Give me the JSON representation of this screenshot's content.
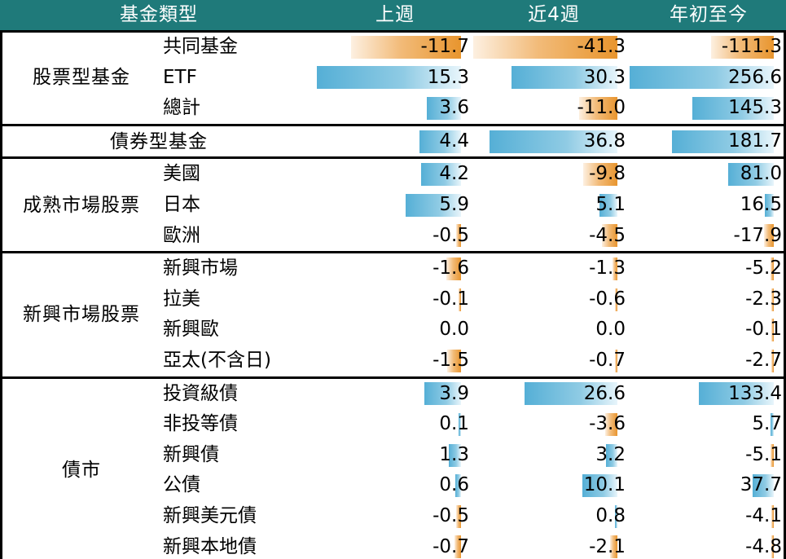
{
  "headers": {
    "category": "基金類型",
    "last_week": "上週",
    "last_4_weeks": "近4週",
    "ytd": "年初至今"
  },
  "colors": {
    "header_bg": "#1f7a7a",
    "header_text": "#ffffff",
    "positive_bar": "#55afd6",
    "negative_bar": "#e8952e"
  },
  "chart_data": {
    "type": "table",
    "columns": [
      "上週",
      "近4週",
      "年初至今"
    ],
    "groups": [
      {
        "name": "股票型基金",
        "rows": [
          {
            "label": "共同基金",
            "values": [
              -11.7,
              -41.3,
              -111.3
            ],
            "display": [
              "-11.7",
              "-41.3",
              "-111.3"
            ]
          },
          {
            "label": "ETF",
            "values": [
              15.3,
              30.3,
              256.6
            ],
            "display": [
              "15.3",
              "30.3",
              "256.6"
            ]
          },
          {
            "label": "總計",
            "values": [
              3.6,
              -11.0,
              145.3
            ],
            "display": [
              "3.6",
              "-11.0",
              "145.3"
            ]
          }
        ]
      },
      {
        "name": "債券型基金",
        "rows": [
          {
            "label": "",
            "values": [
              4.4,
              36.8,
              181.7
            ],
            "display": [
              "4.4",
              "36.8",
              "181.7"
            ]
          }
        ]
      },
      {
        "name": "成熟市場股票",
        "rows": [
          {
            "label": "美國",
            "values": [
              4.2,
              -9.8,
              81.0
            ],
            "display": [
              "4.2",
              "-9.8",
              "81.0"
            ]
          },
          {
            "label": "日本",
            "values": [
              5.9,
              5.1,
              16.5
            ],
            "display": [
              "5.9",
              "5.1",
              "16.5"
            ]
          },
          {
            "label": "歐洲",
            "values": [
              -0.5,
              -4.5,
              -17.9
            ],
            "display": [
              "-0.5",
              "-4.5",
              "-17.9"
            ]
          }
        ]
      },
      {
        "name": "新興市場股票",
        "rows": [
          {
            "label": "新興市場",
            "values": [
              -1.6,
              -1.3,
              -5.2
            ],
            "display": [
              "-1.6",
              "-1.3",
              "-5.2"
            ]
          },
          {
            "label": "拉美",
            "values": [
              -0.1,
              -0.6,
              -2.3
            ],
            "display": [
              "-0.1",
              "-0.6",
              "-2.3"
            ]
          },
          {
            "label": "新興歐",
            "values": [
              0.0,
              0.0,
              -0.1
            ],
            "display": [
              "0.0",
              "0.0",
              "-0.1"
            ]
          },
          {
            "label": "亞太(不含日)",
            "values": [
              -1.5,
              -0.7,
              -2.7
            ],
            "display": [
              "-1.5",
              "-0.7",
              "-2.7"
            ]
          }
        ]
      },
      {
        "name": "債市",
        "rows": [
          {
            "label": "投資級債",
            "values": [
              3.9,
              26.6,
              133.4
            ],
            "display": [
              "3.9",
              "26.6",
              "133.4"
            ]
          },
          {
            "label": "非投等債",
            "values": [
              0.1,
              -3.6,
              5.7
            ],
            "display": [
              "0.1",
              "-3.6",
              "5.7"
            ]
          },
          {
            "label": "新興債",
            "values": [
              1.3,
              3.2,
              -5.1
            ],
            "display": [
              "1.3",
              "3.2",
              "-5.1"
            ]
          },
          {
            "label": "公債",
            "values": [
              0.6,
              10.1,
              37.7
            ],
            "display": [
              "0.6",
              "10.1",
              "37.7"
            ]
          },
          {
            "label": "新興美元債",
            "values": [
              -0.5,
              0.8,
              -4.1
            ],
            "display": [
              "-0.5",
              "0.8",
              "-4.1"
            ]
          },
          {
            "label": "新興本地債",
            "values": [
              -0.7,
              -2.1,
              -4.8
            ],
            "display": [
              "-0.7",
              "-2.1",
              "-4.8"
            ]
          }
        ]
      }
    ]
  }
}
